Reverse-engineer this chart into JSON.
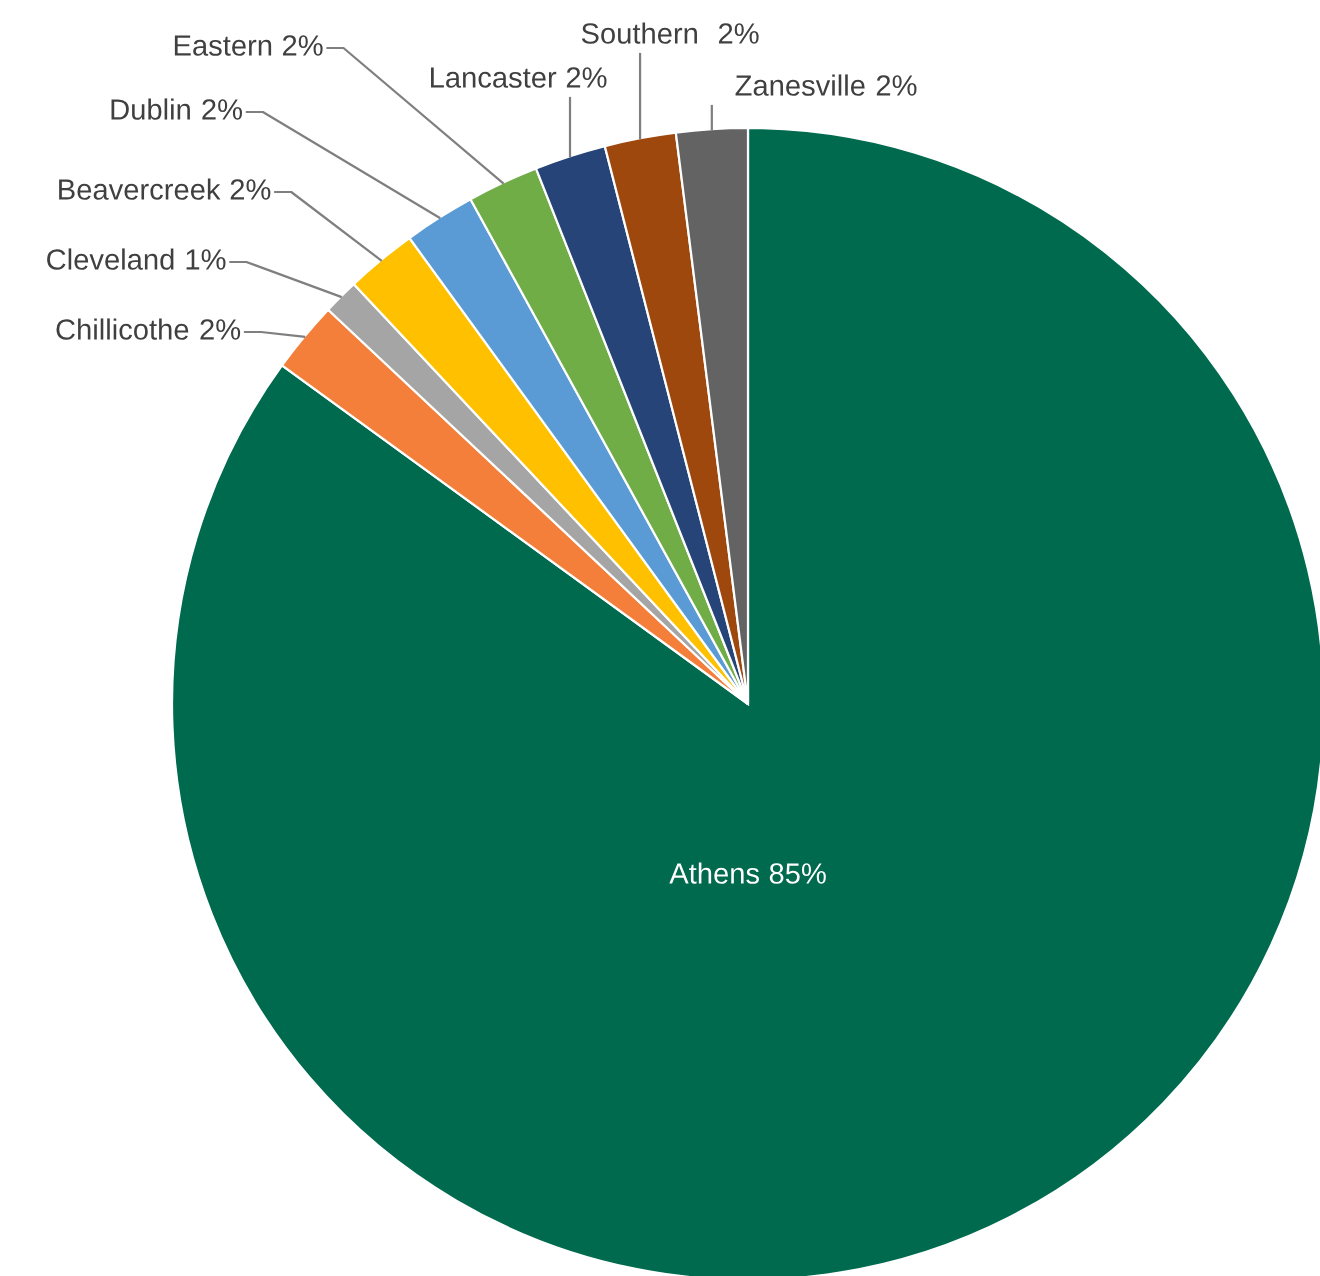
{
  "chart_data": {
    "type": "pie",
    "categories": [
      "Athens",
      "Chillicothe",
      "Cleveland",
      "Beavercreek",
      "Dublin",
      "Eastern",
      "Lancaster",
      "Southern",
      "Zanesville"
    ],
    "values": [
      85,
      2,
      1,
      2,
      2,
      2,
      2,
      2,
      2
    ],
    "colors": [
      "#006a4e",
      "#f47f3a",
      "#a5a5a5",
      "#ffc000",
      "#5b9bd5",
      "#70ad47",
      "#264478",
      "#9e480e",
      "#636363"
    ],
    "value_labels": [
      "85%",
      "2%",
      "1%",
      "2%",
      "2%",
      "2%",
      "2%",
      "2%",
      "2%"
    ],
    "legend": false
  }
}
